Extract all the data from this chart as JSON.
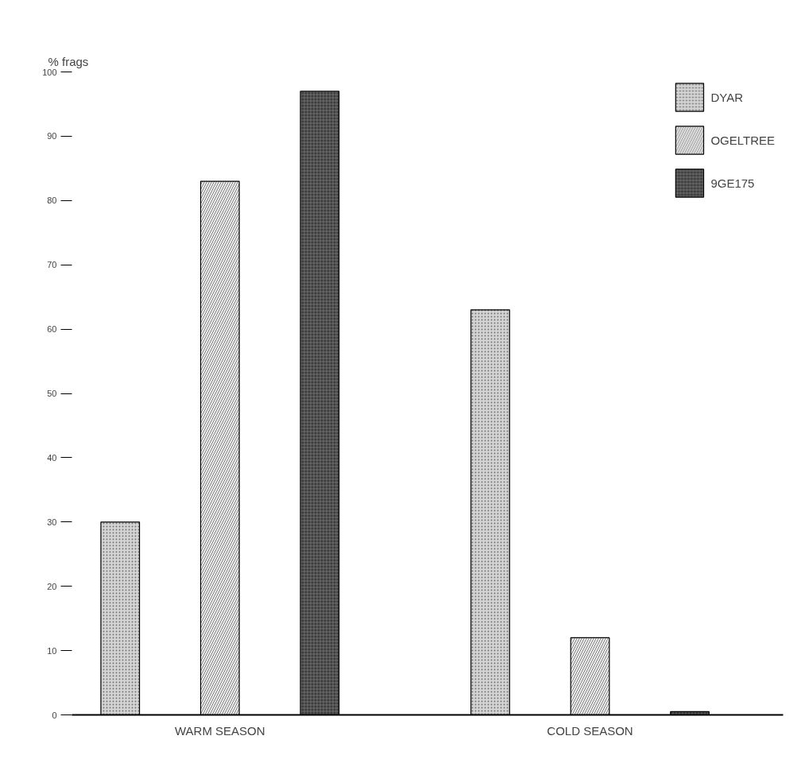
{
  "chart_data": {
    "type": "bar",
    "ylabel": "% frags",
    "categories": [
      "WARM SEASON",
      "COLD SEASON"
    ],
    "series": [
      {
        "name": "DYAR",
        "color": "#d4d4d4",
        "values": [
          30,
          63
        ]
      },
      {
        "name": "OGELTREE",
        "color": "#eeeeee",
        "values": [
          83,
          12
        ]
      },
      {
        "name": "9GE175",
        "color": "#3c3c3c",
        "values": [
          97,
          0.5
        ]
      }
    ],
    "ylim": [
      0,
      100
    ],
    "yticks": [
      0,
      10,
      20,
      30,
      40,
      50,
      60,
      70,
      80,
      90,
      100
    ],
    "grid": false,
    "legend": "top right"
  }
}
